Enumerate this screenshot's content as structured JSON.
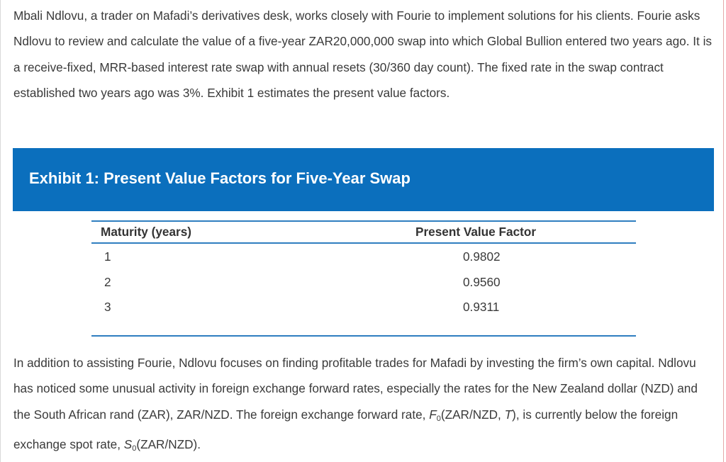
{
  "intro_paragraph": "Mbali Ndlovu, a trader on Mafadi’s derivatives desk, works closely with Fourie to implement solutions for his clients. Fourie asks Ndlovu to review and calculate the value of a five-year ZAR20,000,000 swap into which Global Bullion entered two years ago. It is a receive-fixed, MRR-based interest rate swap with annual resets (30/360 day count). The fixed rate in the swap contract established two years ago was 3%. Exhibit 1 estimates the present value factors.",
  "exhibit": {
    "title": "Exhibit 1: Present Value Factors for Five-Year Swap",
    "color": "#0b6fbd",
    "columns": [
      "Maturity (years)",
      "Present Value Factor"
    ],
    "rows": [
      {
        "maturity": "1",
        "factor": "0.9802"
      },
      {
        "maturity": "2",
        "factor": "0.9560"
      },
      {
        "maturity": "3",
        "factor": "0.9311"
      }
    ]
  },
  "second_paragraph": {
    "text_main": "In addition to assisting Fourie, Ndlovu focuses on finding profitable trades for Mafadi by investing the firm’s own capital. Ndlovu has noticed some unusual activity in foreign exchange forward rates, especially the rates for the New Zealand dollar (NZD) and the South African rand (ZAR), ZAR/NZD. The foreign exchange forward rate, ",
    "forward_symbol": "F",
    "forward_sub": "0",
    "forward_args_start": "(ZAR/NZD, ",
    "forward_T": "T",
    "forward_args_end": "), is currently below the foreign exchange spot rate, ",
    "spot_symbol": "S",
    "spot_sub": "0",
    "spot_args": "(ZAR/NZD)."
  }
}
